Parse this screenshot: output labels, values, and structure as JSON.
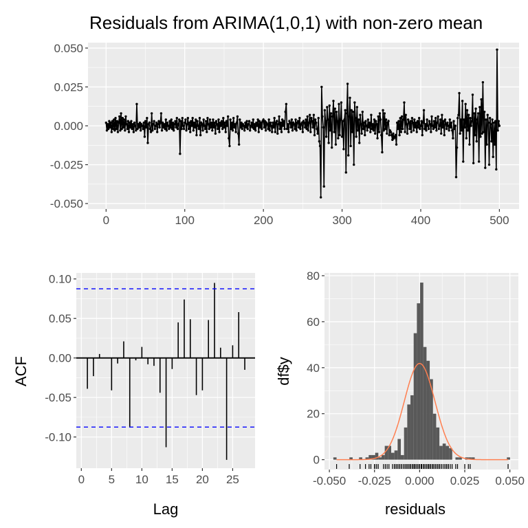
{
  "chart_data": [
    {
      "type": "line",
      "title": "Residuals from ARIMA(1,0,1) with non-zero mean",
      "xlabel": "",
      "ylabel": "",
      "xlim": [
        -23,
        525
      ],
      "ylim": [
        -0.0535,
        0.0535
      ],
      "xticks": [
        0,
        100,
        200,
        300,
        400,
        500
      ],
      "xtick_labels": [
        "0",
        "100",
        "200",
        "300",
        "400",
        "500"
      ],
      "yticks": [
        -0.05,
        -0.025,
        0,
        0.025,
        0.05
      ],
      "ytick_labels": [
        "-0.050",
        "-0.025",
        "0.000",
        "0.025",
        "0.050"
      ],
      "grid": true,
      "points": true,
      "x_start": 0,
      "values": [
        0.002,
        -0.003,
        0.001,
        -0.002,
        0.003,
        -0.001,
        0.002,
        -0.004,
        0.003,
        -0.002,
        0.004,
        -0.003,
        0.005,
        -0.002,
        0.003,
        -0.004,
        0.002,
        0.006,
        -0.003,
        0.008,
        -0.002,
        0.005,
        -0.001,
        0.004,
        -0.003,
        0.006,
        0.001,
        -0.002,
        0.003,
        -0.004,
        0.002,
        -0.001,
        0.003,
        -0.002,
        0.001,
        -0.004,
        0.002,
        0.0,
        -0.003,
        0.014,
        -0.002,
        0.001,
        -0.001,
        0.002,
        -0.003,
        0.001,
        0.0,
        -0.002,
        0.002,
        -0.007,
        0.003,
        -0.001,
        0.005,
        -0.011,
        0.001,
        0.002,
        -0.002,
        -0.004,
        0.008,
        -0.003,
        0.001,
        0.003,
        -0.002,
        0.0,
        0.002,
        -0.004,
        0.001,
        0.003,
        -0.001,
        0.002,
        0.008,
        -0.003,
        0.002,
        -0.001,
        0.001,
        -0.002,
        0.004,
        -0.003,
        0.002,
        0.0,
        -0.002,
        0.003,
        -0.001,
        0.004,
        -0.002,
        0.002,
        -0.003,
        0.001,
        0.003,
        -0.001,
        0.005,
        -0.002,
        0.001,
        0.004,
        -0.018,
        0.003,
        -0.002,
        0.005,
        0.0,
        -0.002,
        0.002,
        0.004,
        -0.003,
        0.001,
        0.005,
        -0.002,
        0.002,
        -0.004,
        0.003,
        0.0,
        0.005,
        -0.003,
        0.002,
        -0.001,
        0.004,
        -0.006,
        0.003,
        0.0,
        -0.002,
        0.005,
        -0.006,
        0.002,
        0.001,
        -0.003,
        0.004,
        0.0,
        -0.002,
        0.003,
        -0.004,
        0.005,
        0.001,
        -0.002,
        0.004,
        -0.001,
        0.002,
        -0.003,
        0.004,
        -0.001,
        0.002,
        -0.005,
        0.003,
        0.001,
        -0.002,
        0.004,
        -0.004,
        0.002,
        0.0,
        0.003,
        -0.002,
        0.005,
        -0.001,
        0.002,
        -0.004,
        0.003,
        0.0,
        0.006,
        -0.008,
        -0.013,
        0.004,
        -0.002,
        0.002,
        -0.003,
        0.005,
        -0.001,
        0.001,
        -0.004,
        0.002,
        0.006,
        -0.005,
        -0.012,
        0.004,
        -0.001,
        0.002,
        -0.002,
        0.001,
        0.0,
        -0.003,
        0.002,
        -0.001,
        0.003,
        -0.002,
        0.001,
        0.003,
        -0.003,
        0.0,
        0.002,
        -0.001,
        0.004,
        -0.002,
        0.001,
        -0.003,
        0.002,
        0.0,
        0.004,
        -0.004,
        0.003,
        -0.001,
        0.002,
        -0.002,
        0.003,
        0.004,
        -0.001,
        0.003,
        -0.003,
        0.002,
        0.001,
        -0.002,
        0.004,
        -0.003,
        0.002,
        0.0,
        -0.004,
        0.002,
        -0.001,
        0.005,
        -0.004,
        0.002,
        0.003,
        -0.005,
        0.001,
        0.006,
        -0.002,
        0.002,
        -0.004,
        0.004,
        0.0,
        0.003,
        -0.002,
        0.009,
        0.014,
        -0.002,
        0.001,
        -0.004,
        0.003,
        0.002,
        -0.001,
        0.004,
        -0.003,
        0.002,
        0.001,
        -0.002,
        0.004,
        -0.003,
        0.002,
        0.003,
        -0.001,
        0.005,
        -0.002,
        0.001,
        0.002,
        -0.004,
        0.003,
        0.002,
        -0.001,
        0.004,
        -0.002,
        0.006,
        -0.003,
        0.002,
        0.007,
        -0.004,
        0.005,
        0.003,
        -0.001,
        0.007,
        -0.006,
        0.004,
        0.002,
        -0.002,
        -0.005,
        0.005,
        -0.01,
        -0.013,
        -0.046,
        0.025,
        0.006,
        -0.001,
        -0.039,
        0.01,
        0.003,
        -0.007,
        0.012,
        0.004,
        -0.011,
        0.013,
        -0.003,
        0.008,
        -0.014,
        0.006,
        0.016,
        -0.004,
        0.011,
        -0.012,
        0.009,
        0.003,
        -0.008,
        0.014,
        -0.006,
        0.004,
        0.015,
        -0.007,
        0.003,
        -0.015,
        0.004,
        0.01,
        -0.03,
        0.008,
        0.027,
        -0.019,
        0.006,
        0.018,
        -0.013,
        0.01,
        -0.004,
        0.009,
        -0.025,
        0.015,
        0.005,
        -0.007,
        0.012,
        -0.003,
        0.004,
        -0.011,
        0.007,
        0.001,
        -0.005,
        0.009,
        -0.002,
        0.002,
        -0.006,
        0.003,
        0.0,
        -0.003,
        0.004,
        -0.001,
        0.002,
        -0.004,
        0.007,
        -0.002,
        0.001,
        -0.003,
        0.004,
        -0.005,
        0.003,
        0.001,
        -0.008,
        0.006,
        -0.004,
        0.008,
        0.004,
        -0.006,
        -0.017,
        0.01,
        -0.003,
        0.008,
        -0.002,
        0.004,
        -0.005,
        0.002,
        0.003,
        -0.006,
        -0.003,
        -0.004,
        -0.006,
        -0.009,
        -0.005,
        -0.008,
        -0.007,
        -0.006,
        -0.012,
        0.002,
        -0.002,
        0.003,
        -0.006,
        0.005,
        -0.004,
        0.006,
        -0.002,
        0.004,
        0.015,
        -0.004,
        0.007,
        0.001,
        -0.005,
        0.004,
        0.002,
        -0.002,
        0.003,
        -0.004,
        0.005,
        0.002,
        -0.003,
        0.004,
        -0.001,
        0.002,
        -0.004,
        0.003,
        -0.001,
        0.005,
        -0.002,
        0.0,
        0.003,
        -0.006,
        0.002,
        0.01,
        -0.002,
        0.001,
        -0.003,
        0.004,
        0.0,
        -0.002,
        0.003,
        0.001,
        -0.004,
        0.006,
        0.0,
        -0.002,
        0.003,
        -0.001,
        0.005,
        -0.003,
        0.002,
        0.006,
        -0.002,
        0.0,
        0.004,
        -0.005,
        0.007,
        -0.001,
        0.003,
        -0.006,
        0.004,
        0.001,
        -0.002,
        0.002,
        0.0,
        -0.003,
        0.004,
        -0.001,
        0.002,
        -0.003,
        -0.008,
        0.003,
        -0.002,
        0.0,
        -0.033,
        -0.014,
        0.005,
        0.007,
        0.021,
        -0.005,
        0.004,
        -0.003,
        0.016,
        -0.023,
        0.004,
        -0.001,
        0.014,
        -0.008,
        0.01,
        -0.003,
        0.007,
        -0.012,
        0.005,
        0.0,
        0.003,
        0.02,
        -0.024,
        0.008,
        -0.006,
        0.011,
        -0.01,
        0.004,
        0.008,
        -0.023,
        0.012,
        -0.007,
        0.017,
        -0.005,
        0.028,
        -0.004,
        0.009,
        -0.027,
        0.004,
        -0.012,
        0.007,
        0.002,
        -0.025,
        0.005,
        0.001,
        -0.01,
        0.004,
        -0.02,
        0.002,
        -0.012,
        0.003,
        -0.028,
        0.049,
        -0.003,
        0.003,
        0.0
      ]
    },
    {
      "type": "bar",
      "subtype": "acf",
      "xlabel": "Lag",
      "ylabel": "ACF",
      "xlim": [
        -0.83,
        28.7
      ],
      "ylim": [
        -0.1395,
        0.1076
      ],
      "xticks": [
        0,
        5,
        10,
        15,
        20,
        25
      ],
      "xtick_labels": [
        "0",
        "5",
        "10",
        "15",
        "20",
        "25"
      ],
      "yticks": [
        -0.1,
        -0.05,
        0,
        0.05,
        0.1
      ],
      "ytick_labels": [
        "-0.10",
        "-0.05",
        "0.00",
        "0.05",
        "0.10"
      ],
      "grid": true,
      "lags": [
        1,
        2,
        3,
        4,
        5,
        6,
        7,
        8,
        9,
        10,
        11,
        12,
        13,
        14,
        15,
        16,
        17,
        18,
        19,
        20,
        21,
        22,
        23,
        24,
        25,
        26,
        27
      ],
      "values": [
        -0.039,
        -0.023,
        0.005,
        0.0,
        -0.041,
        -0.007,
        0.021,
        -0.088,
        -0.003,
        0.014,
        -0.008,
        -0.01,
        -0.044,
        -0.113,
        -0.014,
        0.045,
        0.074,
        0.049,
        -0.047,
        -0.041,
        0.048,
        0.095,
        0.013,
        -0.129,
        0.016,
        0.058,
        -0.015
      ],
      "confidence_bounds": [
        -0.0875,
        0.0875
      ],
      "bound_color": "#0000ff"
    },
    {
      "type": "bar",
      "subtype": "histogram",
      "xlabel": "residuals",
      "ylabel": "df$y",
      "xlim": [
        -0.0527,
        0.0547
      ],
      "ylim": [
        -4.3,
        81.2
      ],
      "xticks": [
        -0.05,
        -0.025,
        0,
        0.025,
        0.05
      ],
      "xtick_labels": [
        "-0.050",
        "-0.025",
        "0.000",
        "0.025",
        "0.050"
      ],
      "yticks": [
        0,
        20,
        40,
        60,
        80
      ],
      "ytick_labels": [
        "0",
        "20",
        "40",
        "60",
        "80"
      ],
      "grid": true,
      "bin_start": -0.0478,
      "bin_width": 0.00178,
      "counts": [
        1,
        0,
        0,
        0,
        0,
        1,
        0,
        0,
        1,
        0,
        1,
        2,
        2,
        3,
        1,
        2,
        6,
        6,
        3,
        4,
        9,
        2,
        14,
        24,
        28,
        55,
        68,
        77,
        49,
        43,
        35,
        20,
        14,
        6,
        7,
        6,
        5,
        0,
        1,
        1,
        0,
        1,
        1,
        1,
        0,
        0,
        0,
        0,
        0,
        0,
        0,
        0,
        0,
        0,
        1
      ],
      "bar_color": "#595959",
      "normal_curve": {
        "mean": 0.0,
        "sd": 0.0085,
        "color": "#ff7f50"
      },
      "rug": true
    }
  ]
}
